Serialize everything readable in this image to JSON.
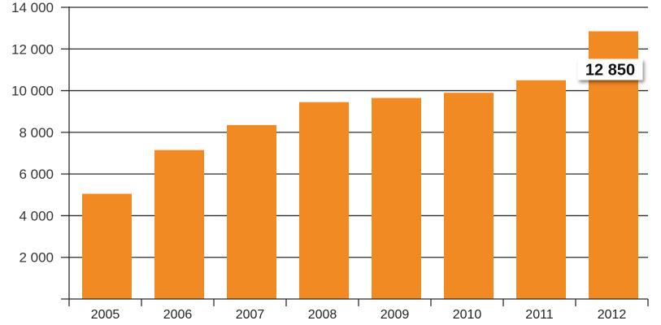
{
  "chart_data": {
    "type": "bar",
    "title": "",
    "xlabel": "",
    "ylabel": "",
    "categories": [
      "2005",
      "2006",
      "2007",
      "2008",
      "2009",
      "2010",
      "2011",
      "2012"
    ],
    "values": [
      5050,
      7150,
      8350,
      9450,
      9650,
      9900,
      10500,
      12850
    ],
    "ylim": [
      0,
      14000
    ],
    "yticks": [
      2000,
      4000,
      6000,
      8000,
      10000,
      12000,
      14000
    ],
    "ytick_labels": [
      "2 000",
      "4 000",
      "6 000",
      "8 000",
      "10 000",
      "12 000",
      "14 000"
    ],
    "grid": true,
    "bar_color": "#F28A24",
    "highlight": {
      "category": "2012",
      "label": "12 850"
    }
  }
}
